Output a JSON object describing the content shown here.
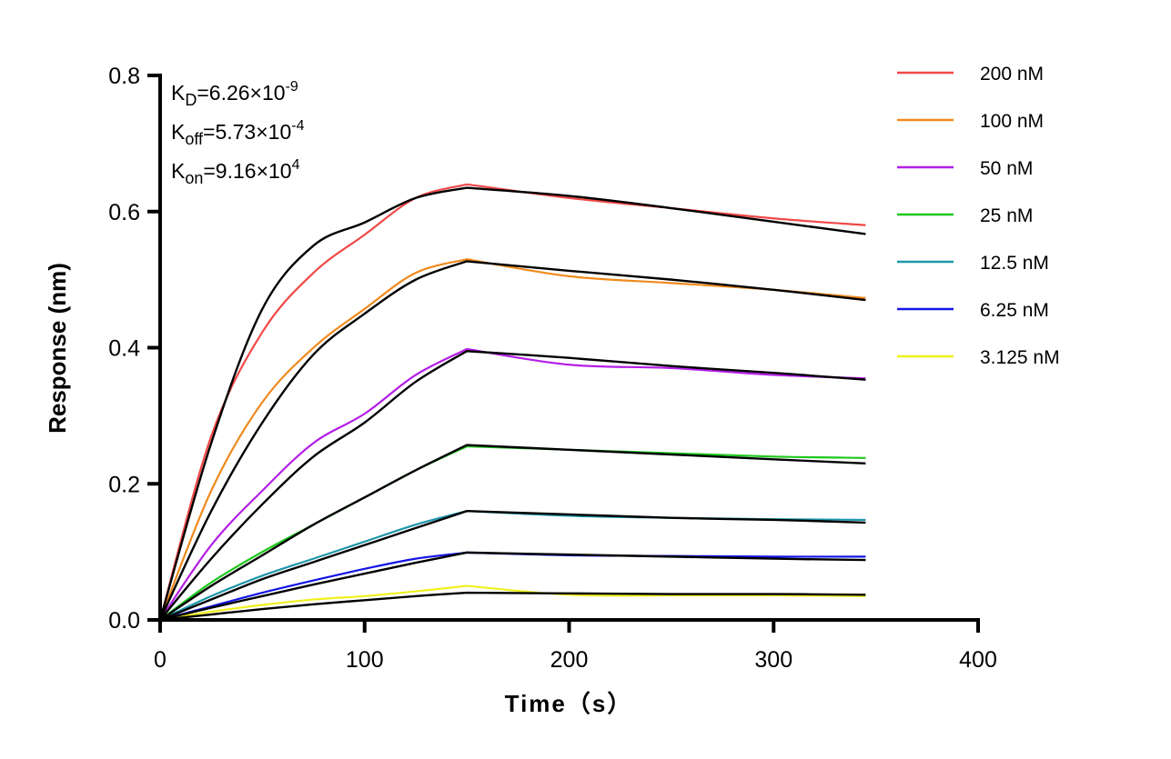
{
  "chart_data": {
    "type": "line",
    "xlabel": "Time（s）",
    "ylabel": "Response (nm)",
    "xlim": [
      0,
      400
    ],
    "ylim": [
      0,
      0.8
    ],
    "xticks": [
      "0",
      "100",
      "200",
      "300",
      "400"
    ],
    "yticks": [
      "0.0",
      "0.2",
      "0.4",
      "0.6",
      "0.8"
    ],
    "grid": false,
    "legend_position": "right",
    "annotations": [
      {
        "base": "K",
        "sub": "D",
        "text": "=6.26×10",
        "sup": "-9"
      },
      {
        "base": "K",
        "sub": "off",
        "text": "=5.73×10",
        "sup": "-4"
      },
      {
        "base": "K",
        "sub": "on",
        "text": "=9.16×10",
        "sup": "4"
      }
    ],
    "x": [
      0,
      25,
      50,
      75,
      100,
      125,
      150,
      200,
      250,
      300,
      345
    ],
    "fit_color": "#000000",
    "series": [
      {
        "name": "200 nM",
        "color": "#f04848",
        "values": [
          0,
          0.27,
          0.423,
          0.51,
          0.566,
          0.62,
          0.64,
          0.62,
          0.605,
          0.59,
          0.58
        ],
        "fit": [
          0,
          0.26,
          0.457,
          0.55,
          0.584,
          0.62,
          0.635,
          0.623,
          0.605,
          0.585,
          0.567
        ]
      },
      {
        "name": "100 nM",
        "color": "#f08a1e",
        "values": [
          0,
          0.19,
          0.32,
          0.4,
          0.457,
          0.51,
          0.53,
          0.505,
          0.495,
          0.485,
          0.473
        ],
        "fit": [
          0,
          0.16,
          0.29,
          0.39,
          0.45,
          0.5,
          0.527,
          0.513,
          0.5,
          0.485,
          0.47
        ]
      },
      {
        "name": "50 nM",
        "color": "#b41ee6",
        "values": [
          0,
          0.11,
          0.19,
          0.26,
          0.303,
          0.36,
          0.398,
          0.375,
          0.37,
          0.36,
          0.355
        ],
        "fit": [
          0,
          0.09,
          0.17,
          0.24,
          0.29,
          0.35,
          0.395,
          0.385,
          0.373,
          0.363,
          0.353
        ]
      },
      {
        "name": "25 nM",
        "color": "#1ec81e",
        "values": [
          0,
          0.055,
          0.1,
          0.14,
          0.18,
          0.22,
          0.255,
          0.25,
          0.245,
          0.24,
          0.238
        ],
        "fit": [
          0,
          0.05,
          0.095,
          0.14,
          0.18,
          0.22,
          0.257,
          0.25,
          0.243,
          0.236,
          0.23
        ]
      },
      {
        "name": "12.5 nM",
        "color": "#1e96aa",
        "values": [
          0,
          0.035,
          0.065,
          0.09,
          0.115,
          0.14,
          0.16,
          0.153,
          0.15,
          0.148,
          0.147
        ],
        "fit": [
          0,
          0.03,
          0.06,
          0.085,
          0.11,
          0.135,
          0.16,
          0.155,
          0.15,
          0.147,
          0.143
        ]
      },
      {
        "name": "6.25 nM",
        "color": "#1414e6",
        "values": [
          0,
          0.02,
          0.04,
          0.058,
          0.075,
          0.09,
          0.099,
          0.095,
          0.094,
          0.093,
          0.093
        ],
        "fit": [
          0,
          0.018,
          0.035,
          0.052,
          0.068,
          0.084,
          0.099,
          0.096,
          0.093,
          0.09,
          0.088
        ]
      },
      {
        "name": "3.125 nM",
        "color": "#f0f01e",
        "values": [
          0,
          0.012,
          0.022,
          0.03,
          0.035,
          0.042,
          0.05,
          0.037,
          0.036,
          0.036,
          0.035
        ],
        "fit": [
          0,
          0.008,
          0.016,
          0.023,
          0.029,
          0.035,
          0.04,
          0.039,
          0.038,
          0.038,
          0.037
        ]
      }
    ]
  }
}
